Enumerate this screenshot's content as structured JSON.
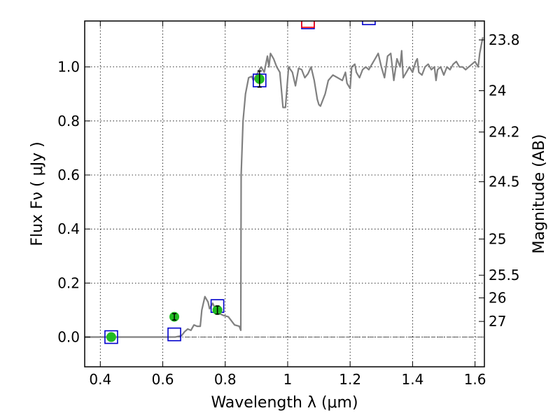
{
  "chart_data": {
    "type": "line",
    "xlabel": "Wavelength  λ (μm)",
    "ylabel": "Flux  Fν  ( μJy )",
    "y2label": "Magnitude (AB)",
    "xlim": [
      0.35,
      1.63
    ],
    "ylim": [
      -0.11,
      1.17
    ],
    "grid": true,
    "x_ticks": [
      0.4,
      0.6,
      0.8,
      1.0,
      1.2,
      1.4,
      1.6
    ],
    "x_tick_labels": [
      "0.4",
      "0.6",
      "0.8",
      "1",
      "1.2",
      "1.4",
      "1.6"
    ],
    "y_ticks": [
      0.0,
      0.2,
      0.4,
      0.6,
      0.8,
      1.0
    ],
    "y_tick_labels": [
      "0.0",
      "0.2",
      "0.4",
      "0.6",
      "0.8",
      "1.0"
    ],
    "mag_ticks": [
      {
        "label": "23.8",
        "flux": 1.1
      },
      {
        "label": "24",
        "flux": 0.912
      },
      {
        "label": "24.2",
        "flux": 0.759
      },
      {
        "label": "24.5",
        "flux": 0.575
      },
      {
        "label": "25",
        "flux": 0.363
      },
      {
        "label": "25.5",
        "flux": 0.229
      },
      {
        "label": "26",
        "flux": 0.145
      },
      {
        "label": "27",
        "flux": 0.058
      }
    ],
    "series": [
      {
        "type": "line",
        "color": "#808080",
        "points": [
          [
            0.35,
            0.0
          ],
          [
            0.62,
            0.0
          ],
          [
            0.64,
            0.0
          ],
          [
            0.66,
            0.005
          ],
          [
            0.67,
            0.02
          ],
          [
            0.68,
            0.03
          ],
          [
            0.69,
            0.025
          ],
          [
            0.7,
            0.045
          ],
          [
            0.71,
            0.04
          ],
          [
            0.72,
            0.04
          ],
          [
            0.725,
            0.1
          ],
          [
            0.735,
            0.15
          ],
          [
            0.745,
            0.13
          ],
          [
            0.75,
            0.105
          ],
          [
            0.76,
            0.125
          ],
          [
            0.77,
            0.1
          ],
          [
            0.78,
            0.1
          ],
          [
            0.785,
            0.085
          ],
          [
            0.795,
            0.08
          ],
          [
            0.81,
            0.075
          ],
          [
            0.82,
            0.06
          ],
          [
            0.83,
            0.045
          ],
          [
            0.845,
            0.04
          ],
          [
            0.85,
            0.025
          ],
          [
            0.851,
            0.6
          ],
          [
            0.857,
            0.8
          ],
          [
            0.865,
            0.9
          ],
          [
            0.875,
            0.96
          ],
          [
            0.885,
            0.965
          ],
          [
            0.89,
            0.95
          ],
          [
            0.9,
            0.97
          ],
          [
            0.915,
            1.0
          ],
          [
            0.925,
            0.98
          ],
          [
            0.935,
            1.04
          ],
          [
            0.94,
            1.0
          ],
          [
            0.945,
            1.05
          ],
          [
            0.955,
            1.03
          ],
          [
            0.965,
            1.0
          ],
          [
            0.975,
            0.98
          ],
          [
            0.985,
            0.85
          ],
          [
            0.993,
            0.85
          ],
          [
            1.003,
            1.0
          ],
          [
            1.015,
            0.98
          ],
          [
            1.025,
            0.93
          ],
          [
            1.035,
            0.995
          ],
          [
            1.045,
            0.99
          ],
          [
            1.055,
            0.96
          ],
          [
            1.065,
            0.975
          ],
          [
            1.075,
            1.0
          ],
          [
            1.085,
            0.95
          ],
          [
            1.095,
            0.88
          ],
          [
            1.1,
            0.86
          ],
          [
            1.105,
            0.855
          ],
          [
            1.12,
            0.9
          ],
          [
            1.13,
            0.95
          ],
          [
            1.145,
            0.97
          ],
          [
            1.16,
            0.96
          ],
          [
            1.175,
            0.95
          ],
          [
            1.185,
            0.98
          ],
          [
            1.19,
            0.94
          ],
          [
            1.2,
            0.92
          ],
          [
            1.205,
            1.0
          ],
          [
            1.215,
            1.01
          ],
          [
            1.22,
            0.98
          ],
          [
            1.23,
            0.96
          ],
          [
            1.24,
            0.99
          ],
          [
            1.25,
            1.0
          ],
          [
            1.26,
            0.99
          ],
          [
            1.27,
            1.01
          ],
          [
            1.28,
            1.03
          ],
          [
            1.29,
            1.05
          ],
          [
            1.3,
            1.0
          ],
          [
            1.31,
            0.96
          ],
          [
            1.32,
            1.04
          ],
          [
            1.33,
            1.05
          ],
          [
            1.34,
            0.95
          ],
          [
            1.35,
            1.03
          ],
          [
            1.36,
            1.0
          ],
          [
            1.365,
            1.06
          ],
          [
            1.37,
            0.96
          ],
          [
            1.38,
            0.98
          ],
          [
            1.39,
            1.0
          ],
          [
            1.4,
            0.98
          ],
          [
            1.41,
            1.02
          ],
          [
            1.415,
            1.03
          ],
          [
            1.42,
            0.98
          ],
          [
            1.43,
            0.97
          ],
          [
            1.44,
            1.0
          ],
          [
            1.45,
            1.01
          ],
          [
            1.46,
            0.99
          ],
          [
            1.47,
            1.0
          ],
          [
            1.475,
            0.95
          ],
          [
            1.48,
            0.99
          ],
          [
            1.49,
            1.0
          ],
          [
            1.5,
            0.97
          ],
          [
            1.51,
            1.0
          ],
          [
            1.52,
            0.99
          ],
          [
            1.53,
            1.01
          ],
          [
            1.54,
            1.02
          ],
          [
            1.55,
            1.0
          ],
          [
            1.56,
            1.0
          ],
          [
            1.57,
            0.99
          ],
          [
            1.58,
            1.0
          ],
          [
            1.59,
            1.01
          ],
          [
            1.6,
            1.02
          ],
          [
            1.61,
            1.0
          ],
          [
            1.615,
            1.05
          ],
          [
            1.62,
            1.08
          ],
          [
            1.625,
            1.11
          ]
        ]
      },
      {
        "type": "scatter",
        "marker": "square",
        "edgecolor": "#0000cc",
        "points": [
          [
            0.435,
            0.0
          ],
          [
            0.637,
            0.01
          ],
          [
            0.775,
            0.115
          ],
          [
            0.91,
            0.95
          ],
          [
            1.065,
            1.165
          ],
          [
            1.26,
            1.18
          ]
        ]
      },
      {
        "type": "scatter",
        "marker": "square",
        "edgecolor": "#ff0000",
        "points": [
          [
            1.065,
            1.17
          ]
        ]
      },
      {
        "type": "scatter",
        "marker": "circle",
        "color": "#22bb22",
        "points": [
          [
            0.435,
            0.0
          ],
          [
            0.637,
            0.075
          ],
          [
            0.775,
            0.1
          ],
          [
            0.91,
            0.955
          ]
        ],
        "errors": [
          0.0,
          0.012,
          0.015,
          0.03
        ]
      }
    ]
  }
}
